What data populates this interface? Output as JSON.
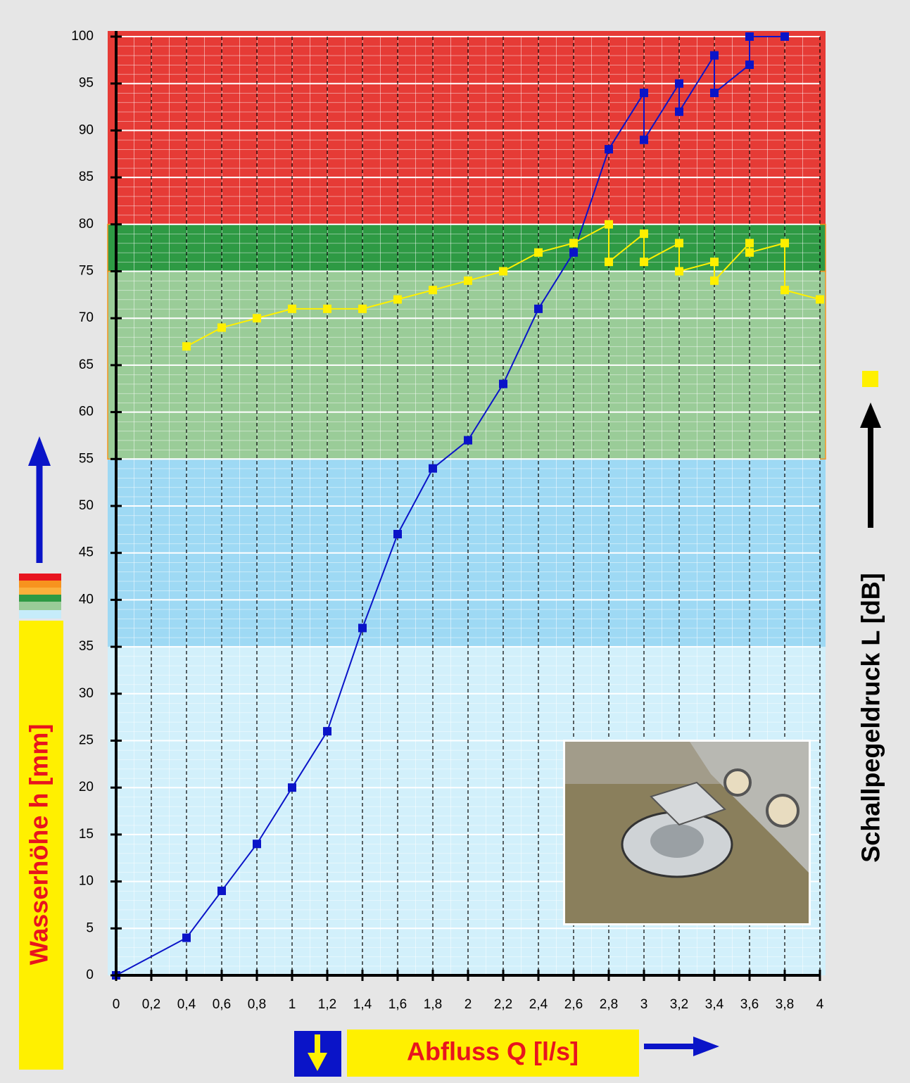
{
  "chart_data": {
    "type": "line",
    "x_label": "Abfluss Q [l/s]",
    "y_label": "Wasserhöhe h [mm]",
    "y2_label": "Schallpegeldruck L [dB]",
    "xlim": [
      0,
      4
    ],
    "ylim": [
      0,
      100
    ],
    "xticks": [
      0,
      {
        "value": 0.2,
        "label": "0,2"
      },
      {
        "value": 0.4,
        "label": "0,4"
      },
      {
        "value": 0.6,
        "label": "0,6"
      },
      {
        "value": 0.8,
        "label": "0,8"
      },
      1,
      {
        "value": 1.2,
        "label": "1,2"
      },
      {
        "value": 1.4,
        "label": "1,4"
      },
      {
        "value": 1.6,
        "label": "1,6"
      },
      {
        "value": 1.8,
        "label": "1,8"
      },
      2,
      {
        "value": 2.2,
        "label": "2,2"
      },
      {
        "value": 2.4,
        "label": "2,4"
      },
      {
        "value": 2.6,
        "label": "2,6"
      },
      {
        "value": 2.8,
        "label": "2,8"
      },
      3,
      {
        "value": 3.2,
        "label": "3,2"
      },
      {
        "value": 3.4,
        "label": "3,4"
      },
      {
        "value": 3.6,
        "label": "3,6"
      },
      {
        "value": 3.8,
        "label": "3,8"
      },
      4
    ],
    "yticks": [
      0,
      5,
      10,
      15,
      20,
      25,
      30,
      35,
      40,
      45,
      50,
      55,
      60,
      65,
      70,
      75,
      80,
      85,
      90,
      95,
      100
    ],
    "grid": true,
    "bands": [
      {
        "from": 73,
        "to": 100,
        "color": "#e63b36"
      },
      {
        "from": 0,
        "to": 35,
        "color": "#d2f0fb"
      },
      {
        "from": 35,
        "to": 55,
        "color": "#9ed9f4"
      },
      {
        "from": 55,
        "to": 75,
        "color": "#9acc98"
      },
      {
        "from": 75,
        "to": 80,
        "color": "#2e9a44"
      }
    ],
    "series": [
      {
        "color": "#0a14c8",
        "x": [
          0,
          0.4,
          0.6,
          0.8,
          1,
          1.2,
          1.4,
          1.6,
          1.8,
          2,
          2.2,
          2.4,
          2.6,
          2.8,
          3,
          3,
          3.2,
          3.2,
          3.4,
          3.4,
          3.6,
          3.6,
          3.8
        ],
        "values": [
          0,
          4,
          9,
          14,
          20,
          26,
          37,
          47,
          54,
          57,
          63,
          71,
          77,
          88,
          94,
          89,
          95,
          92,
          98,
          94,
          97,
          100,
          100
        ]
      },
      {
        "color": "#fff000",
        "x": [
          0.4,
          0.6,
          0.8,
          1,
          1.2,
          1.4,
          1.6,
          1.8,
          2,
          2.2,
          2.4,
          2.6,
          2.8,
          2.8,
          3,
          3,
          3.2,
          3.2,
          3.4,
          3.4,
          3.6,
          3.6,
          3.8,
          3.8,
          4
        ],
        "values": [
          67,
          69,
          70,
          71,
          71,
          71,
          72,
          73,
          74,
          75,
          77,
          78,
          80,
          76,
          79,
          76,
          78,
          75,
          76,
          74,
          78,
          77,
          78,
          73,
          72
        ]
      }
    ]
  }
}
